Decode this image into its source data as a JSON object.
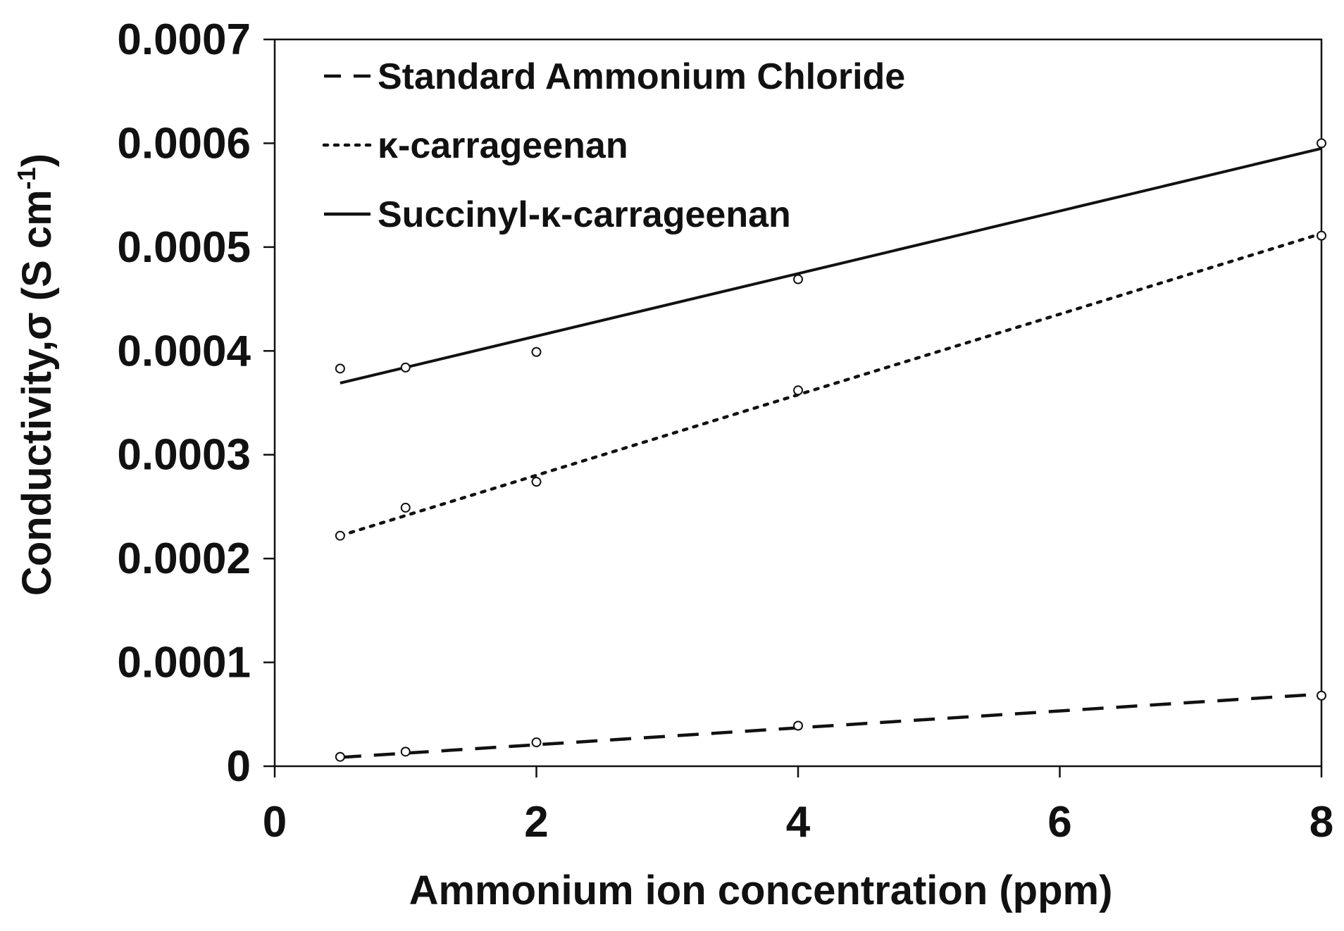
{
  "chart_data": {
    "type": "scatter",
    "title": "",
    "xlabel": "Ammonium ion concentration (ppm)",
    "ylabel": "Conductivity,σ (S cm",
    "ylabel_sup": "-1",
    "ylabel_close": ")",
    "xlim": [
      0,
      8
    ],
    "ylim": [
      0,
      0.0007
    ],
    "xticks": [
      0,
      2,
      4,
      6,
      8
    ],
    "xtick_labels": [
      "0",
      "2",
      "4",
      "6",
      "8"
    ],
    "yticks": [
      0,
      0.0001,
      0.0002,
      0.0003,
      0.0004,
      0.0005,
      0.0006,
      0.0007
    ],
    "ytick_labels": [
      "0",
      "0.0001",
      "0.0002",
      "0.0003",
      "0.0004",
      "0.0005",
      "0.0006",
      "0.0007"
    ],
    "grid": false,
    "legend_position": "top-left",
    "series": [
      {
        "name": "Standard Ammonium Chloride",
        "line_style": "dashed",
        "x": [
          0.5,
          1,
          2,
          4,
          8
        ],
        "y": [
          9e-06,
          1.4e-05,
          2.3e-05,
          3.9e-05,
          6.8e-05
        ],
        "trend": [
          [
            0.5,
            8.5e-06
          ],
          [
            8,
            6.95e-05
          ]
        ]
      },
      {
        "name": "κ-carrageenan",
        "line_style": "dotted",
        "x": [
          0.5,
          1,
          2,
          4,
          8
        ],
        "y": [
          0.000222,
          0.000249,
          0.000274,
          0.000362,
          0.000511
        ],
        "trend": [
          [
            0.5,
            0.000222
          ],
          [
            8,
            0.000513
          ]
        ]
      },
      {
        "name": "Succinyl-κ-carrageenan",
        "line_style": "solid",
        "x": [
          0.5,
          1,
          2,
          4,
          8
        ],
        "y": [
          0.000383,
          0.000384,
          0.000399,
          0.000469,
          0.0006
        ],
        "trend": [
          [
            0.5,
            0.000369
          ],
          [
            8,
            0.000595
          ]
        ]
      }
    ]
  },
  "colors": {
    "ink": "#111111",
    "marker_fill": "#ffffff",
    "background": "#ffffff"
  }
}
